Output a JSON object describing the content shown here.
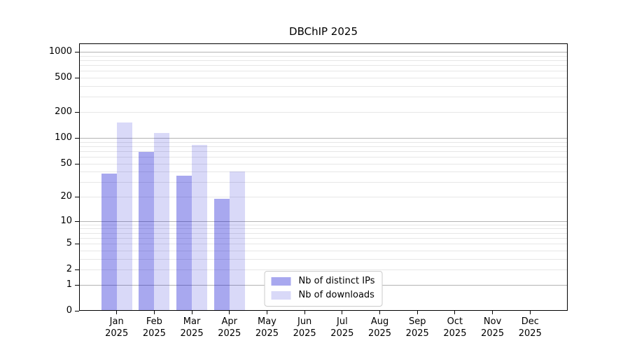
{
  "chart_data": {
    "type": "bar",
    "title": "DBChIP 2025",
    "year": "2025",
    "categories": [
      "Jan",
      "Feb",
      "Mar",
      "Apr",
      "May",
      "Jun",
      "Jul",
      "Aug",
      "Sep",
      "Oct",
      "Nov",
      "Dec"
    ],
    "series": [
      {
        "name": "Nb of distinct IPs",
        "hex": "#a8a8ef",
        "fill": "rgba(0,0,208,0.34)",
        "values": [
          38,
          68,
          36,
          19,
          0,
          0,
          0,
          0,
          0,
          0,
          0,
          0
        ]
      },
      {
        "name": "Nb of downloads",
        "hex": "#d9d9f7",
        "fill": "rgba(0,0,208,0.15)",
        "values": [
          150,
          114,
          83,
          40,
          0,
          0,
          0,
          0,
          0,
          0,
          0,
          0
        ]
      }
    ],
    "yscale": "log1p",
    "ylim": [
      0,
      1255
    ],
    "y_ticks": [
      0,
      1,
      2,
      5,
      10,
      20,
      50,
      100,
      200,
      500,
      1000
    ],
    "grid": {
      "major": [
        1,
        10,
        100,
        1000
      ],
      "minor": [
        2,
        3,
        4,
        5,
        6,
        7,
        8,
        9,
        20,
        30,
        40,
        50,
        60,
        70,
        80,
        90,
        200,
        300,
        400,
        500,
        600,
        700,
        800,
        900
      ],
      "major_color": "#b4b4b4",
      "minor_color": "#e7e7e7"
    },
    "legend_position": "lower center",
    "axis_color": "#000000",
    "background": "#ffffff"
  }
}
